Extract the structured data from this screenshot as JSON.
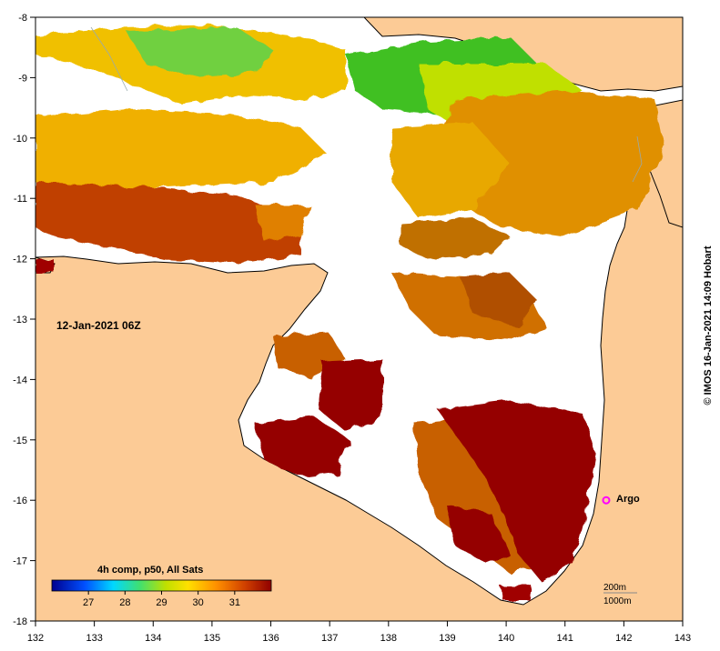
{
  "map": {
    "date_label": "12-Jan-2021 06Z",
    "credit": "© IMOS 16-Jan-2021 14:09 Hobart",
    "lon_ticks": [
      "132",
      "133",
      "134",
      "135",
      "136",
      "137",
      "138",
      "139",
      "140",
      "141",
      "142",
      "143"
    ],
    "lat_ticks": [
      "-8",
      "-9",
      "-10",
      "-11",
      "-12",
      "-13",
      "-14",
      "-15",
      "-16",
      "-17",
      "-18"
    ],
    "lon_range": [
      132,
      143
    ],
    "lat_range": [
      -18,
      -8
    ],
    "legend": {
      "title": "4h comp, p50, All Sats",
      "ticks": [
        "27",
        "28",
        "29",
        "30",
        "31"
      ]
    },
    "marker": {
      "label": "Argo",
      "lon": 141.7,
      "lat": -16.0,
      "color": "#ff00ff"
    },
    "scale_bar": [
      "200m",
      "1000m"
    ],
    "colors": {
      "land": "#fccb96",
      "coast": "#000000"
    }
  }
}
